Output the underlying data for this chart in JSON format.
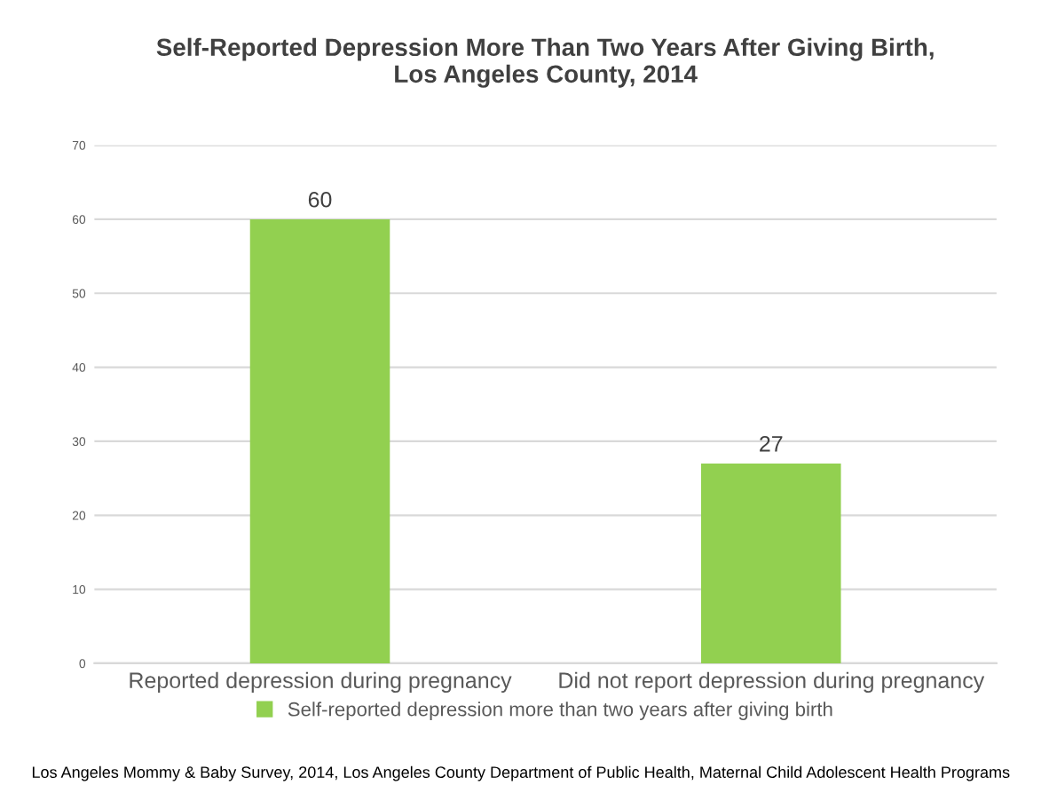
{
  "chart_data": {
    "type": "bar",
    "title": "Self-Reported Depression More Than Two Years After Giving Birth,\nLos Angeles County, 2014",
    "categories": [
      "Reported depression during pregnancy",
      "Did not report depression during pregnancy"
    ],
    "series": [
      {
        "name": "Self-reported depression more than two years after giving birth",
        "color": "#92d050",
        "values": [
          60,
          27
        ]
      }
    ],
    "ylim": [
      0,
      70
    ],
    "yticks": [
      0,
      10,
      20,
      30,
      40,
      50,
      60,
      70
    ],
    "grid": "y",
    "legend": "bottom",
    "data_labels": true,
    "annotations": [
      "Los Angeles Mommy & Baby Survey, 2014, Los Angeles County Department of Public Health, Maternal Child Adolescent Health Programs"
    ]
  }
}
